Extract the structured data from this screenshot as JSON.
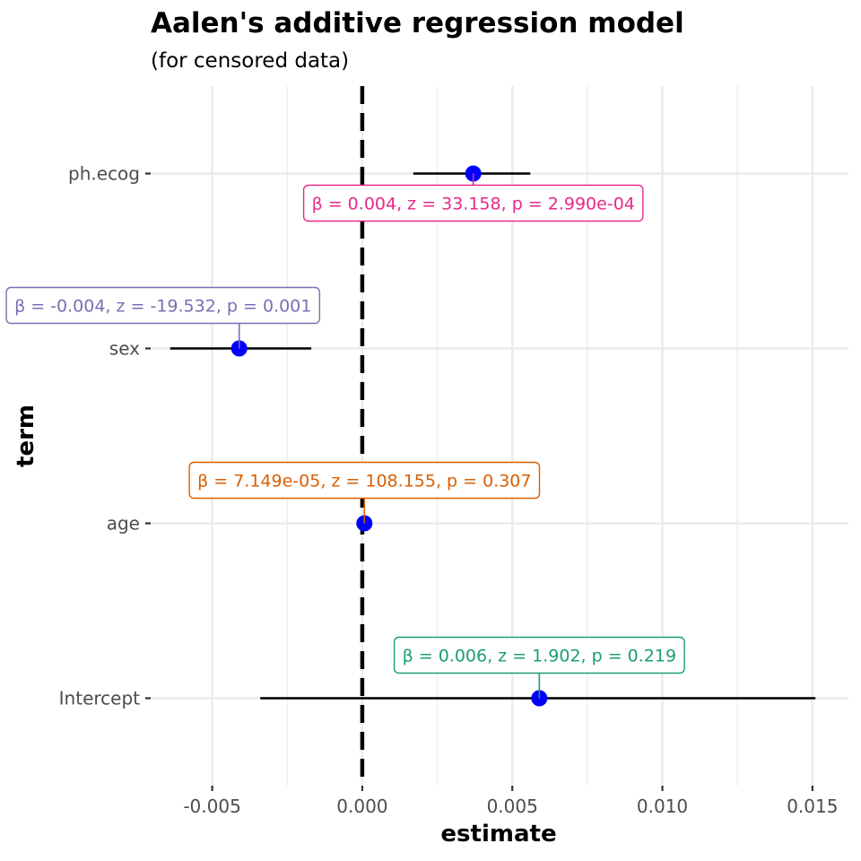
{
  "chart_data": {
    "type": "scatter",
    "title": "Aalen's additive regression model",
    "subtitle": "(for censored data)",
    "xlabel": "estimate",
    "ylabel": "term",
    "xlim": [
      -0.00705,
      0.0162
    ],
    "x_ticks": [
      -0.005,
      0.0,
      0.005,
      0.01,
      0.015
    ],
    "x_tick_labels": [
      "-0.005",
      "0.000",
      "0.005",
      "0.010",
      "0.015"
    ],
    "reference_line": 0,
    "grid": true,
    "categories": [
      "Intercept",
      "age",
      "sex",
      "ph.ecog"
    ],
    "points": [
      {
        "term": "Intercept",
        "estimate": 0.0059,
        "conf_low": -0.0034,
        "conf_high": 0.0151,
        "label": "β = 0.006, z = 1.902, p = 0.219",
        "color": "#1b9e77"
      },
      {
        "term": "age",
        "estimate": 7.149e-05,
        "conf_low": 7.149e-05,
        "conf_high": 7.149e-05,
        "label": "β = 7.149e-05, z = 108.155, p = 0.307",
        "color": "#d95f02"
      },
      {
        "term": "sex",
        "estimate": -0.0041,
        "conf_low": -0.0064,
        "conf_high": -0.0017,
        "label": "β = -0.004, z = -19.532, p = 0.001",
        "color": "#7570b3"
      },
      {
        "term": "ph.ecog",
        "estimate": 0.0037,
        "conf_low": 0.0017,
        "conf_high": 0.0056,
        "label": "β = 0.004, z = 33.158, p = 2.990e-04",
        "color": "#e7298a"
      }
    ],
    "point_color": "#0000ff",
    "errorbar_color": "#000000"
  }
}
